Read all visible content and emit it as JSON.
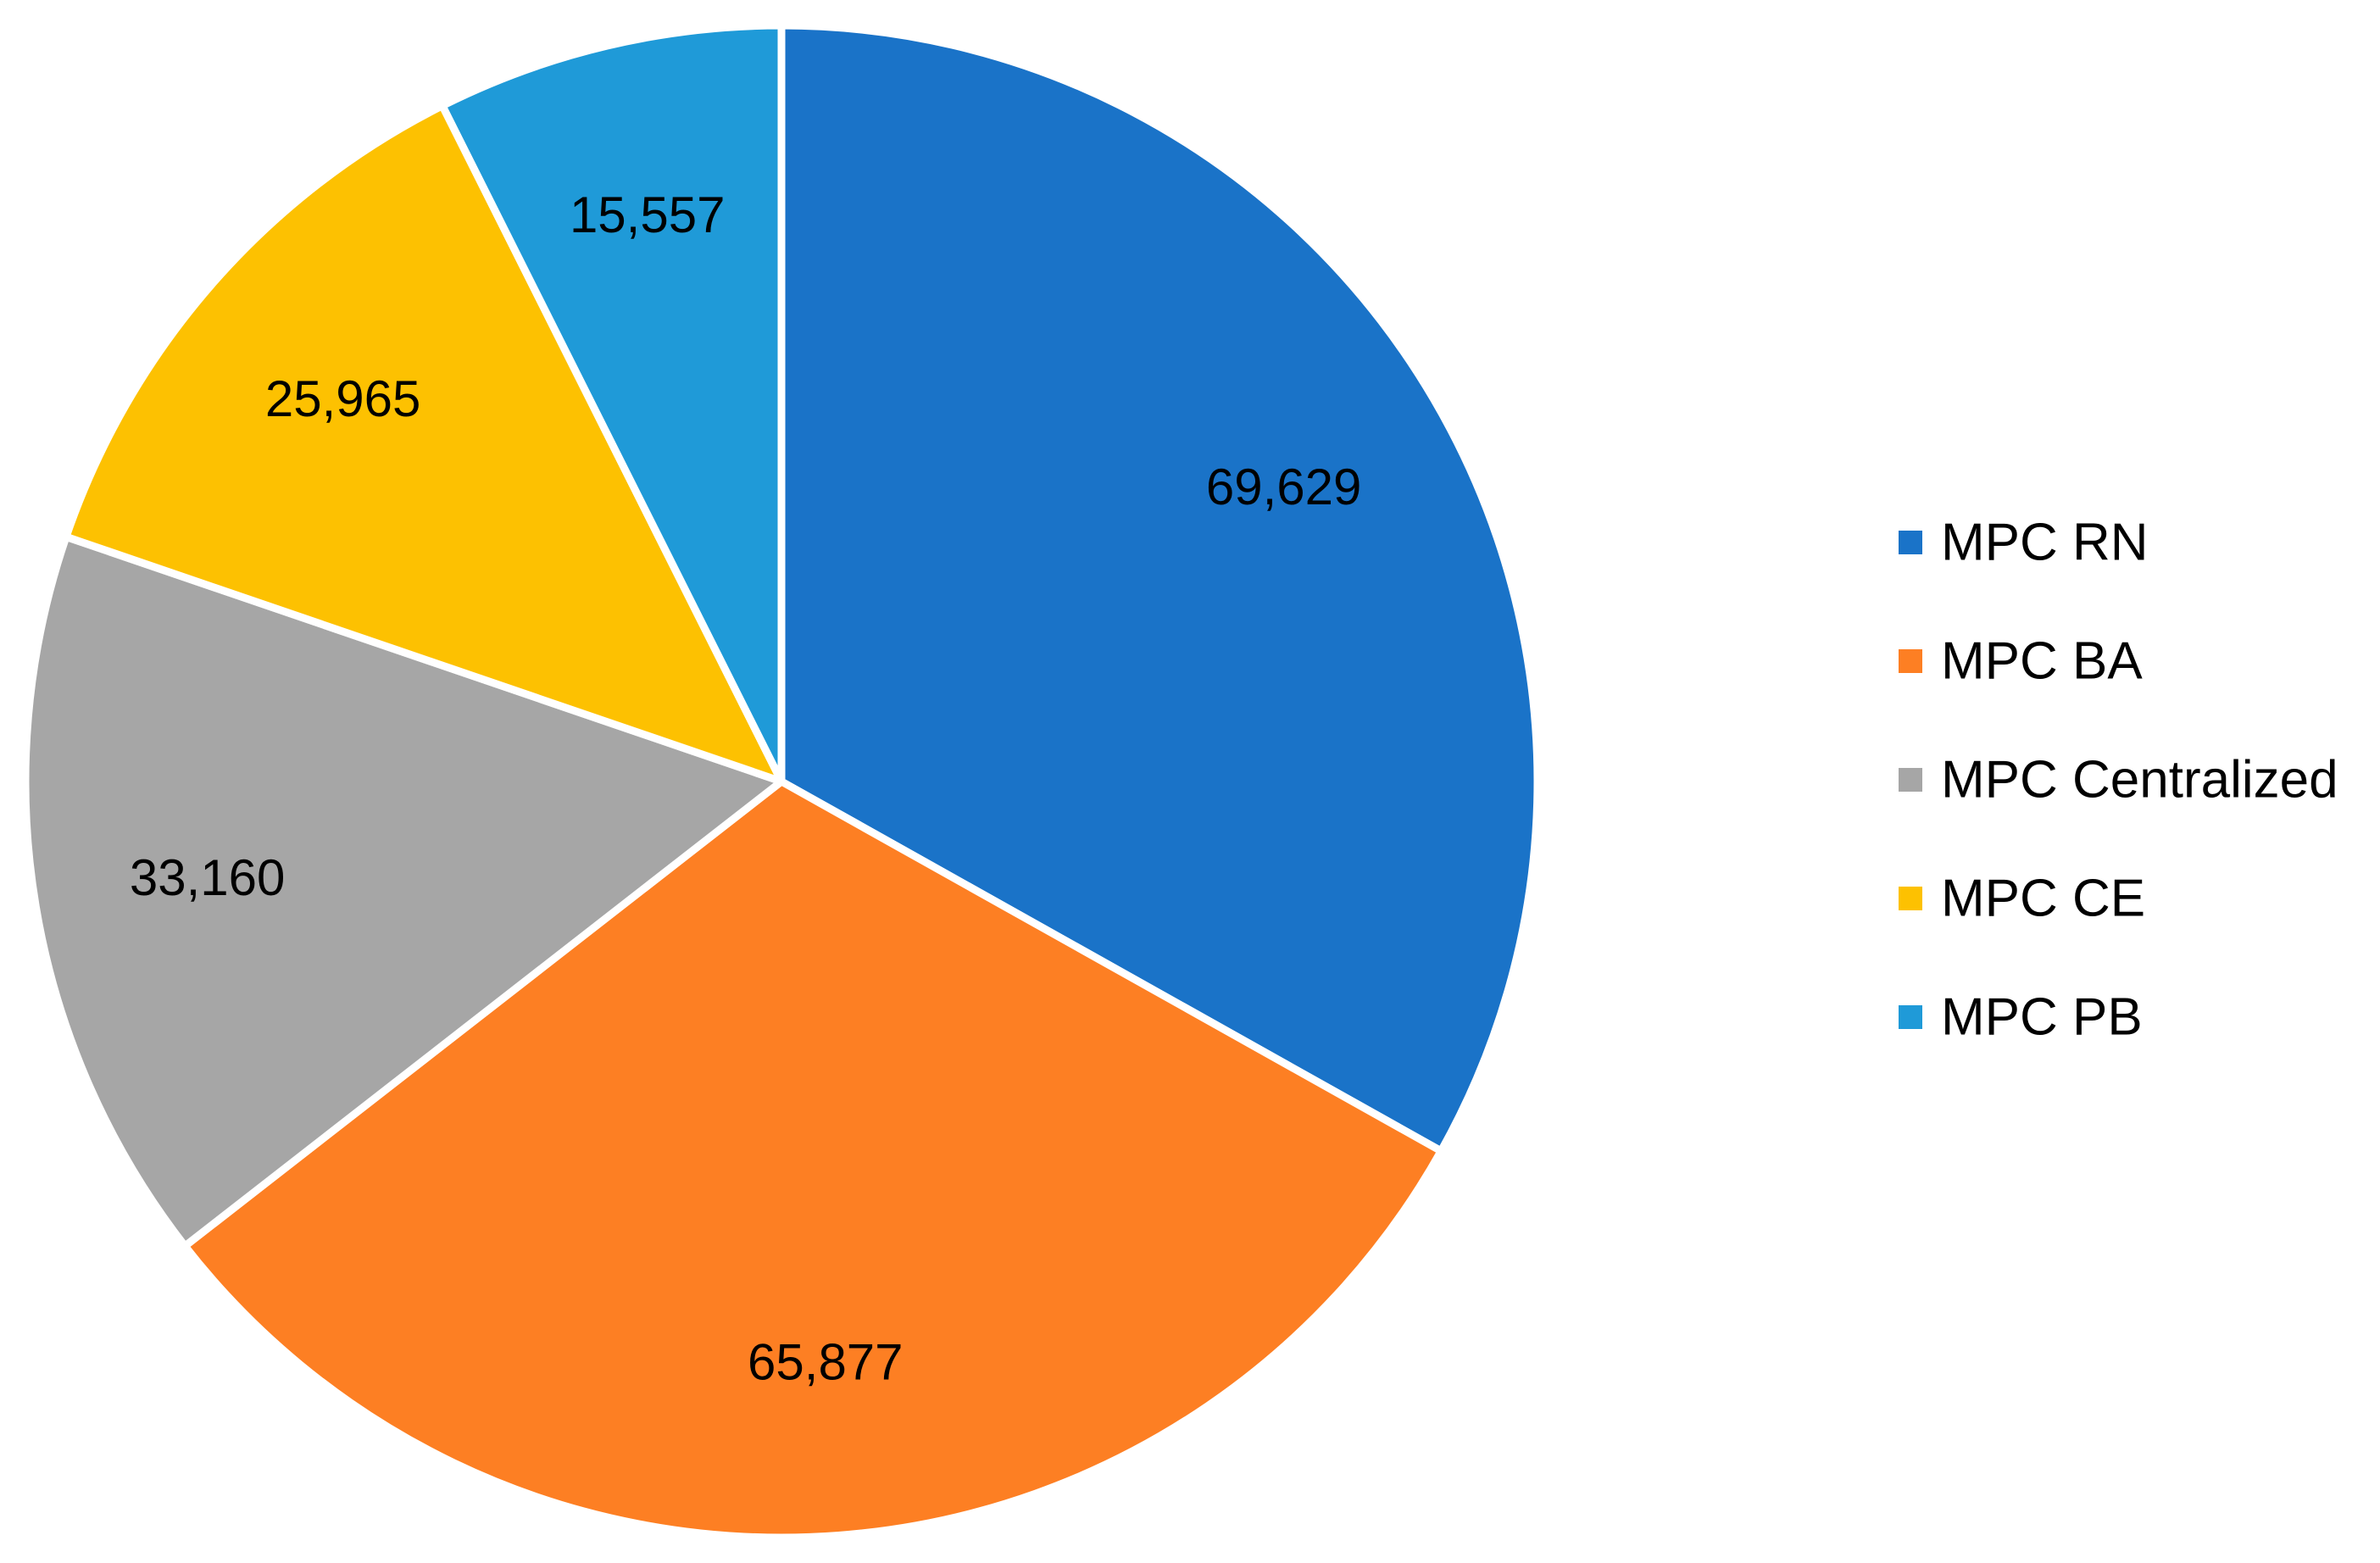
{
  "chart_data": {
    "type": "pie",
    "title": "",
    "categories": [
      "MPC RN",
      "MPC BA",
      "MPC Centralized",
      "MPC CE",
      "MPC PB"
    ],
    "values": [
      69629,
      65877,
      33160,
      25965,
      15557
    ],
    "value_labels": [
      "69,629",
      "65,877",
      "33,160",
      "25,965",
      "15,557"
    ],
    "colors": [
      "#1a73c8",
      "#fd7f23",
      "#a6a6a6",
      "#fdc101",
      "#1f9ad8"
    ],
    "start_angle": "12 o'clock",
    "direction": "clockwise",
    "legend_position": "right"
  }
}
